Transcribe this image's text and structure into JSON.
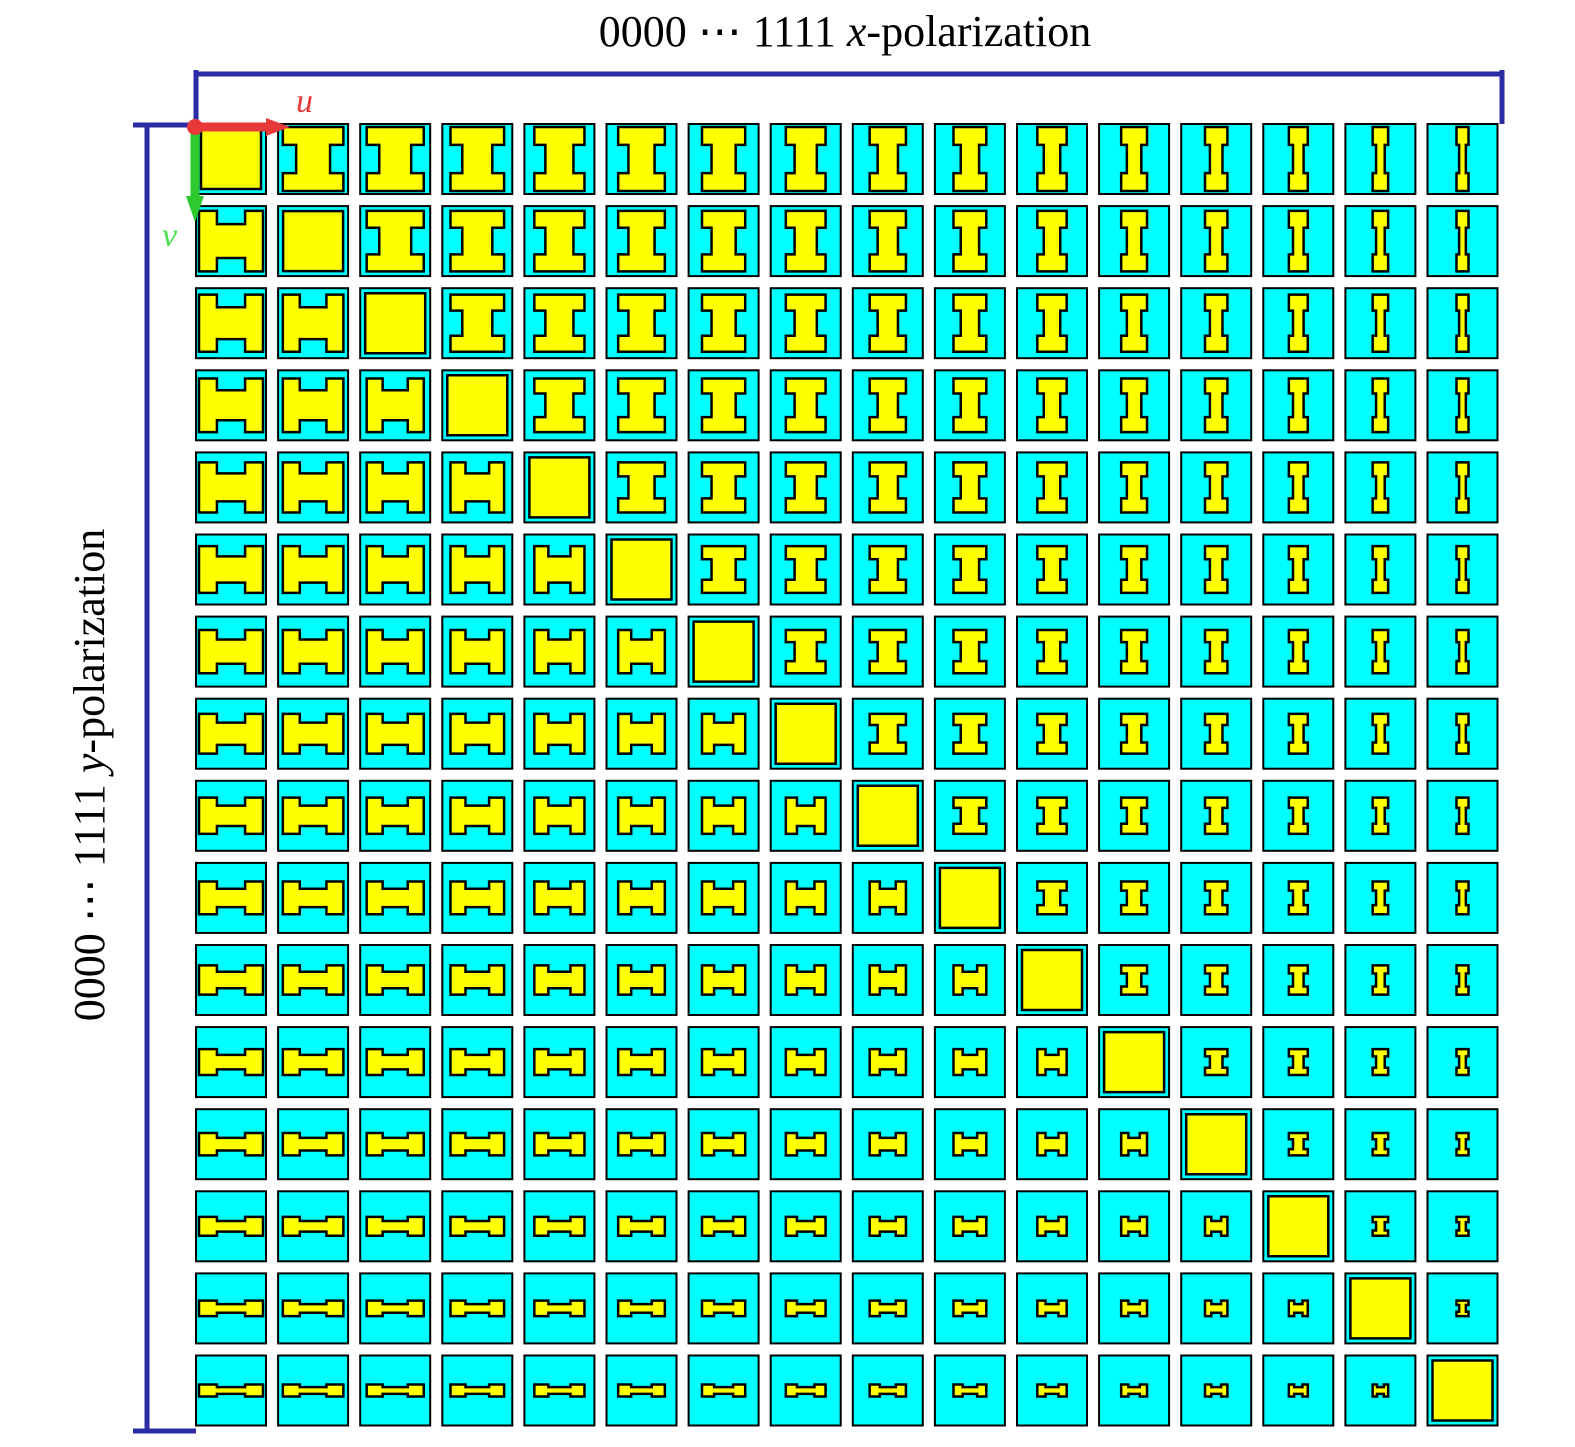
{
  "top_label": {
    "prefix": "0000 ⋯ 1111 ",
    "var": "x",
    "suffix": "-polarization"
  },
  "left_label": {
    "prefix": "0000 ⋯ 1111 ",
    "var": "y",
    "suffix": "-polarization"
  },
  "axis_u": "u",
  "axis_v": "v"
}
